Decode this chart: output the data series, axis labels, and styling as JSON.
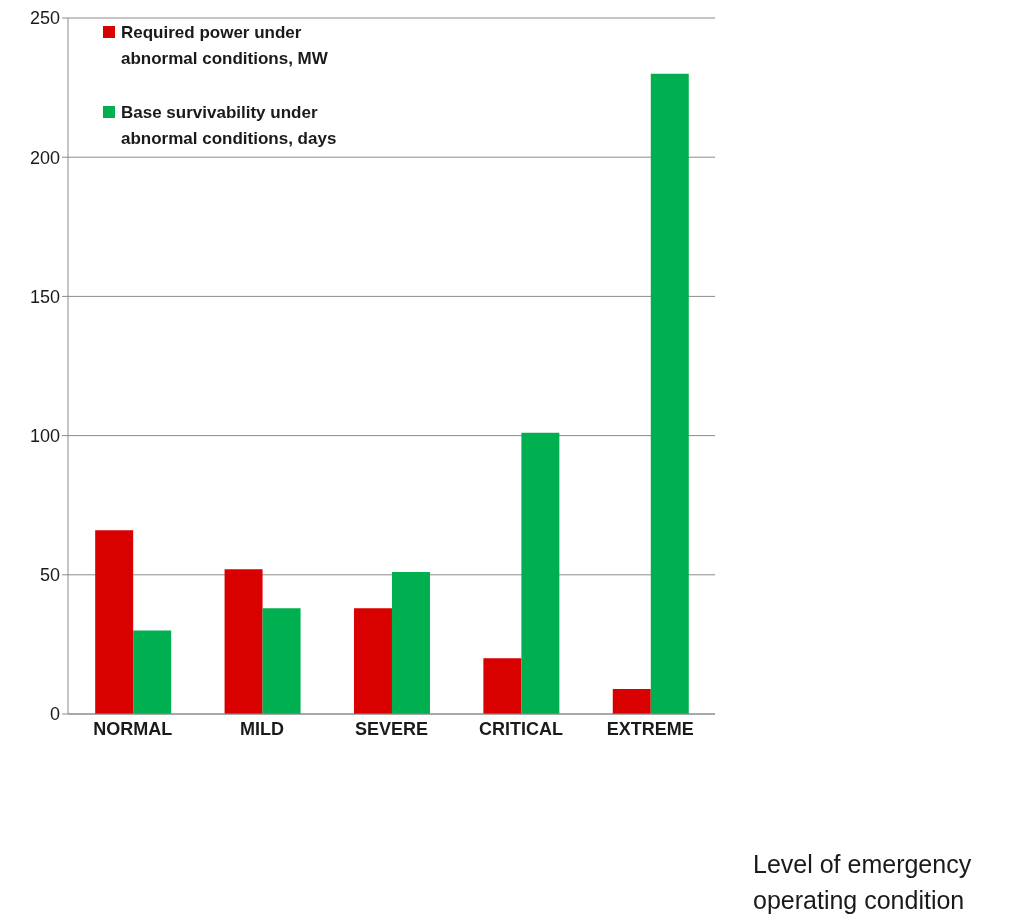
{
  "chart_data": {
    "type": "bar",
    "xlabel": "Level of emergency operating condition",
    "categories": [
      "NORMAL",
      "MILD",
      "SEVERE",
      "CRITICAL",
      "EXTREME"
    ],
    "series": [
      {
        "name": "Required power under abnormal conditions, MW",
        "color": "#d90000",
        "values": [
          66,
          52,
          38,
          20,
          9
        ]
      },
      {
        "name": "Base survivability under abnormal conditions, days",
        "color": "#00b050",
        "values": [
          30,
          38,
          51,
          101,
          230
        ]
      }
    ],
    "ylim": [
      0,
      250
    ],
    "yticks": [
      0,
      50,
      100,
      150,
      200,
      250
    ],
    "grid": "y",
    "legend": "top left"
  }
}
